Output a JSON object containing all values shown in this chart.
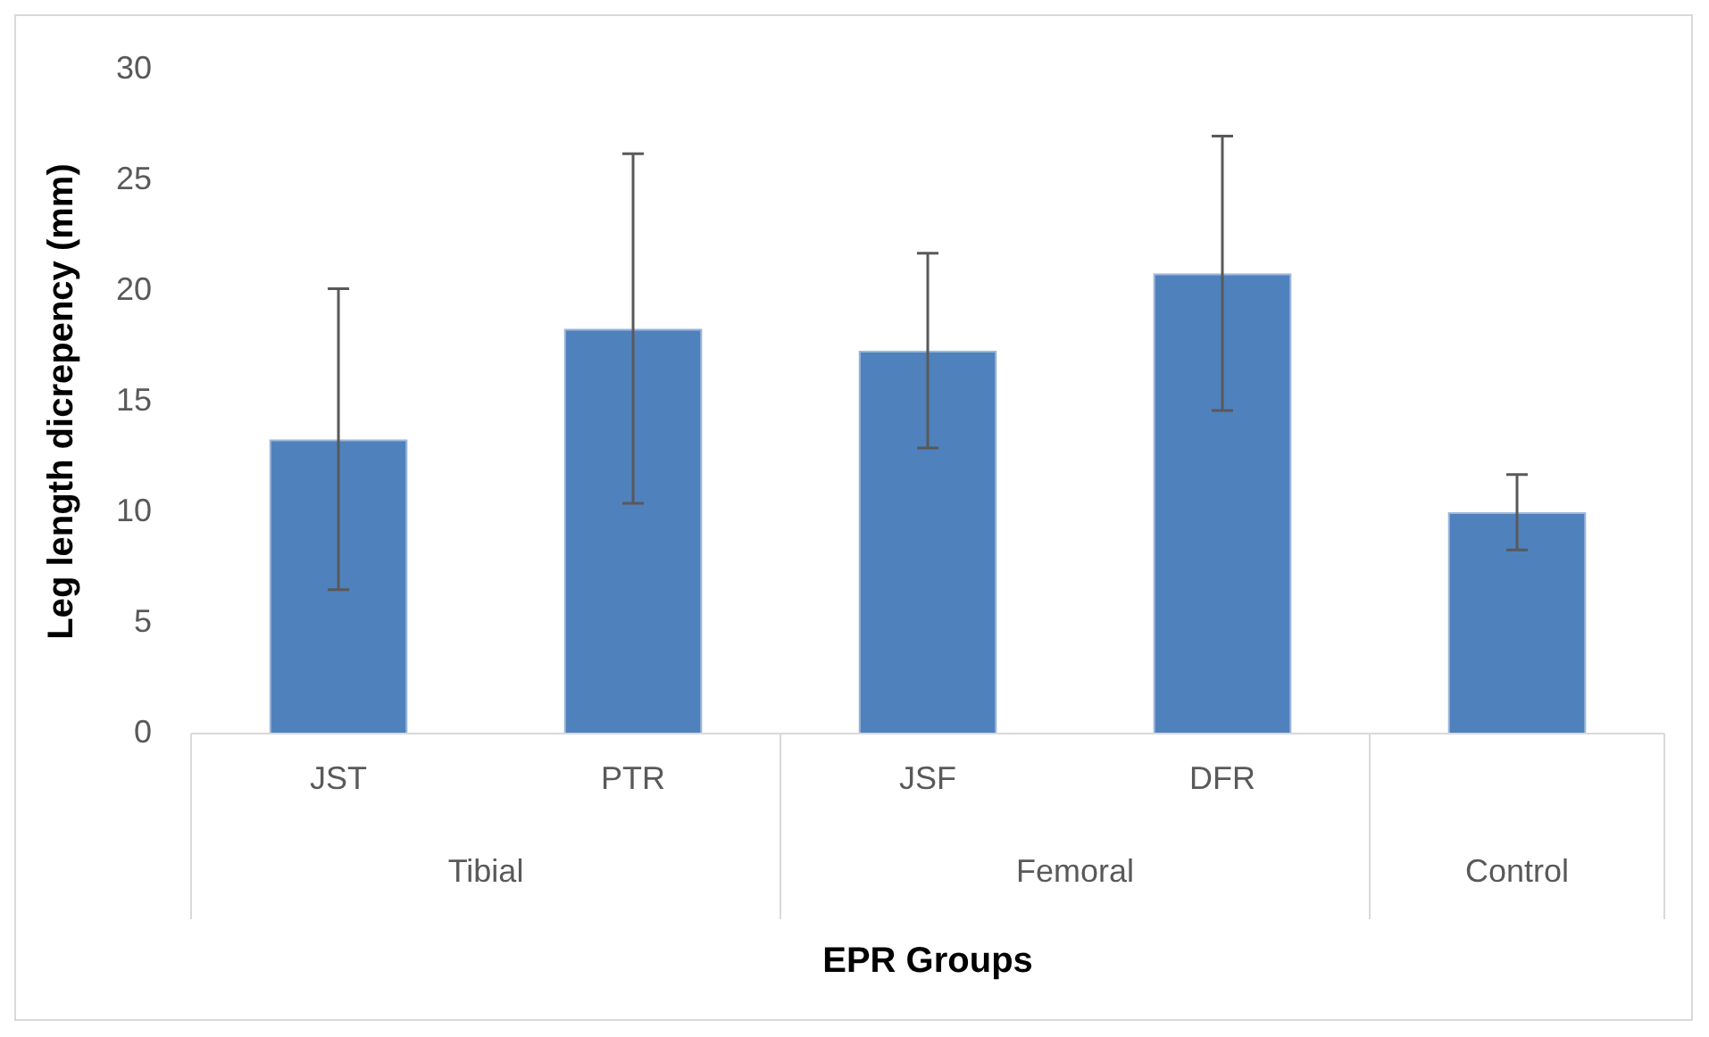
{
  "chart_data": {
    "type": "bar",
    "xlabel": "EPR Groups",
    "ylabel": "Leg length dicrepency (mm)",
    "categories": [
      "JST",
      "PTR",
      "JSF",
      "DFR",
      null
    ],
    "values": [
      13.3,
      18.3,
      17.3,
      20.8,
      10.0
    ],
    "errors": [
      6.8,
      7.9,
      4.4,
      6.2,
      1.7
    ],
    "color": "#4f81bd",
    "ylim": [
      0,
      30
    ],
    "yticks": [
      0,
      5,
      10,
      15,
      20,
      25,
      30
    ],
    "annotations": [
      "Tibial",
      "Femoral",
      "Control"
    ]
  }
}
